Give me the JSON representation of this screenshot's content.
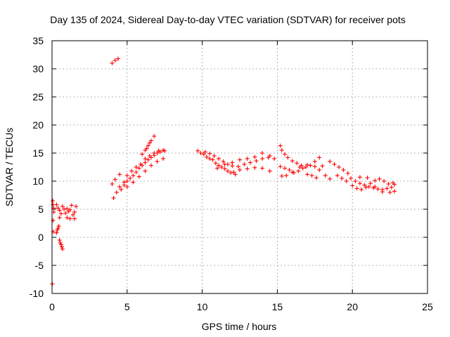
{
  "chart_data": {
    "type": "scatter",
    "title": "Day 135 of 2024, Sidereal Day-to-day VTEC variation (SDTVAR) for receiver pots",
    "xlabel": "GPS time / hours",
    "ylabel": "SDTVAR / TECUs",
    "xlim": [
      0,
      25
    ],
    "ylim": [
      -10,
      35
    ],
    "xticks": [
      "0",
      "5",
      "10",
      "15",
      "20",
      "25"
    ],
    "yticks": [
      "-10",
      "-5",
      "0",
      "5",
      "10",
      "15",
      "20",
      "25",
      "30",
      "35"
    ],
    "grid": true,
    "marker": "+",
    "color": "#ff0000",
    "series": [
      {
        "name": "SDTVAR",
        "points": [
          [
            0.02,
            -8.3
          ],
          [
            0.05,
            6.5
          ],
          [
            0.06,
            5.8
          ],
          [
            0.07,
            3.0
          ],
          [
            0.08,
            1.0
          ],
          [
            0.1,
            5.2
          ],
          [
            0.12,
            4.5
          ],
          [
            0.3,
            0.8
          ],
          [
            0.35,
            1.3
          ],
          [
            0.4,
            1.6
          ],
          [
            0.45,
            2.0
          ],
          [
            0.5,
            -0.5
          ],
          [
            0.55,
            -1.0
          ],
          [
            0.6,
            -1.3
          ],
          [
            0.65,
            -1.7
          ],
          [
            0.7,
            -2.1
          ],
          [
            0.3,
            5.8
          ],
          [
            0.4,
            5.2
          ],
          [
            0.5,
            4.8
          ],
          [
            0.5,
            3.5
          ],
          [
            0.6,
            4.2
          ],
          [
            0.7,
            5.5
          ],
          [
            0.8,
            5.0
          ],
          [
            0.9,
            4.3
          ],
          [
            1.0,
            5.1
          ],
          [
            1.0,
            3.5
          ],
          [
            1.1,
            4.6
          ],
          [
            1.2,
            4.9
          ],
          [
            1.2,
            3.3
          ],
          [
            1.3,
            5.7
          ],
          [
            1.4,
            4.0
          ],
          [
            1.5,
            4.5
          ],
          [
            1.5,
            3.3
          ],
          [
            1.6,
            5.5
          ],
          [
            4.0,
            31.0
          ],
          [
            4.2,
            31.5
          ],
          [
            4.4,
            31.8
          ],
          [
            4.0,
            9.5
          ],
          [
            4.1,
            7.0
          ],
          [
            4.2,
            10.3
          ],
          [
            4.3,
            8.0
          ],
          [
            4.5,
            11.2
          ],
          [
            4.6,
            8.5
          ],
          [
            4.8,
            9.3
          ],
          [
            5.0,
            10.0
          ],
          [
            5.2,
            10.5
          ],
          [
            5.4,
            11.0
          ],
          [
            5.6,
            11.6
          ],
          [
            5.8,
            12.3
          ],
          [
            6.0,
            12.8
          ],
          [
            6.2,
            13.3
          ],
          [
            6.4,
            13.8
          ],
          [
            6.6,
            14.2
          ],
          [
            6.8,
            14.6
          ],
          [
            7.0,
            15.0
          ],
          [
            7.2,
            15.2
          ],
          [
            7.4,
            15.5
          ],
          [
            7.5,
            15.4
          ],
          [
            4.5,
            9.0
          ],
          [
            4.8,
            9.8
          ],
          [
            5.0,
            11.0
          ],
          [
            5.3,
            11.8
          ],
          [
            5.6,
            12.5
          ],
          [
            5.9,
            13.0
          ],
          [
            6.2,
            14.0
          ],
          [
            6.5,
            14.5
          ],
          [
            6.8,
            15.0
          ],
          [
            7.1,
            15.4
          ],
          [
            6.0,
            14.8
          ],
          [
            6.2,
            15.5
          ],
          [
            6.4,
            16.3
          ],
          [
            6.6,
            17.2
          ],
          [
            6.8,
            18.0
          ],
          [
            6.3,
            15.8
          ],
          [
            6.5,
            16.8
          ],
          [
            5.0,
            9.0
          ],
          [
            5.4,
            9.8
          ],
          [
            5.8,
            10.8
          ],
          [
            6.2,
            11.8
          ],
          [
            6.6,
            12.8
          ],
          [
            7.0,
            13.5
          ],
          [
            7.4,
            14.0
          ],
          [
            9.7,
            15.4
          ],
          [
            9.9,
            15.0
          ],
          [
            10.1,
            14.8
          ],
          [
            10.3,
            14.3
          ],
          [
            10.5,
            14.0
          ],
          [
            10.7,
            13.8
          ],
          [
            10.9,
            13.2
          ],
          [
            11.1,
            12.8
          ],
          [
            11.3,
            12.5
          ],
          [
            11.5,
            12.2
          ],
          [
            11.7,
            11.8
          ],
          [
            11.9,
            11.5
          ],
          [
            12.1,
            11.6
          ],
          [
            10.2,
            15.2
          ],
          [
            10.5,
            14.9
          ],
          [
            10.8,
            14.5
          ],
          [
            11.1,
            14.0
          ],
          [
            11.4,
            13.5
          ],
          [
            11.7,
            13.0
          ],
          [
            12.0,
            12.7
          ],
          [
            12.4,
            12.6
          ],
          [
            12.8,
            13.0
          ],
          [
            13.2,
            13.3
          ],
          [
            13.6,
            13.6
          ],
          [
            14.0,
            14.0
          ],
          [
            14.4,
            14.2
          ],
          [
            14.8,
            14.0
          ],
          [
            11.0,
            12.3
          ],
          [
            11.5,
            13.0
          ],
          [
            12.0,
            13.3
          ],
          [
            12.5,
            13.8
          ],
          [
            13.0,
            14.0
          ],
          [
            13.5,
            14.3
          ],
          [
            14.0,
            15.0
          ],
          [
            14.5,
            14.5
          ],
          [
            12.5,
            12.0
          ],
          [
            13.0,
            12.2
          ],
          [
            13.5,
            12.4
          ],
          [
            14.0,
            12.3
          ],
          [
            14.5,
            11.8
          ],
          [
            12.2,
            11.2
          ],
          [
            15.2,
            16.3
          ],
          [
            15.3,
            15.5
          ],
          [
            15.5,
            14.8
          ],
          [
            15.7,
            14.2
          ],
          [
            16.0,
            13.6
          ],
          [
            16.3,
            13.2
          ],
          [
            16.6,
            12.8
          ],
          [
            16.9,
            12.5
          ],
          [
            17.2,
            12.8
          ],
          [
            17.5,
            13.5
          ],
          [
            17.8,
            14.2
          ],
          [
            15.2,
            12.6
          ],
          [
            15.5,
            12.3
          ],
          [
            15.8,
            12.0
          ],
          [
            16.1,
            11.5
          ],
          [
            16.4,
            11.8
          ],
          [
            16.7,
            12.3
          ],
          [
            17.0,
            11.2
          ],
          [
            17.3,
            11.0
          ],
          [
            17.6,
            10.6
          ],
          [
            15.3,
            10.9
          ],
          [
            15.6,
            11.0
          ],
          [
            16.0,
            11.6
          ],
          [
            16.5,
            12.5
          ],
          [
            17.0,
            12.9
          ],
          [
            17.5,
            12.6
          ],
          [
            18.0,
            12.7
          ],
          [
            17.8,
            12.0
          ],
          [
            18.2,
            11.0
          ],
          [
            18.5,
            10.4
          ],
          [
            18.5,
            13.5
          ],
          [
            18.8,
            13.0
          ],
          [
            19.1,
            12.5
          ],
          [
            19.4,
            12.0
          ],
          [
            19.7,
            11.4
          ],
          [
            19.0,
            11.0
          ],
          [
            19.3,
            10.5
          ],
          [
            19.6,
            10.0
          ],
          [
            19.9,
            10.5
          ],
          [
            20.2,
            10.0
          ],
          [
            20.5,
            9.6
          ],
          [
            20.8,
            9.3
          ],
          [
            21.1,
            9.0
          ],
          [
            21.4,
            8.8
          ],
          [
            21.7,
            8.6
          ],
          [
            22.0,
            8.5
          ],
          [
            22.3,
            8.7
          ],
          [
            22.6,
            8.9
          ],
          [
            22.8,
            8.2
          ],
          [
            20.0,
            9.2
          ],
          [
            20.3,
            8.7
          ],
          [
            20.6,
            8.5
          ],
          [
            20.9,
            8.9
          ],
          [
            21.2,
            9.6
          ],
          [
            21.5,
            10.1
          ],
          [
            21.8,
            10.4
          ],
          [
            22.1,
            10.0
          ],
          [
            22.4,
            9.5
          ],
          [
            22.7,
            9.7
          ],
          [
            20.5,
            10.7
          ],
          [
            21.0,
            10.6
          ],
          [
            21.5,
            9.0
          ],
          [
            22.0,
            8.1
          ],
          [
            22.5,
            8.0
          ],
          [
            22.8,
            9.4
          ]
        ]
      }
    ]
  }
}
